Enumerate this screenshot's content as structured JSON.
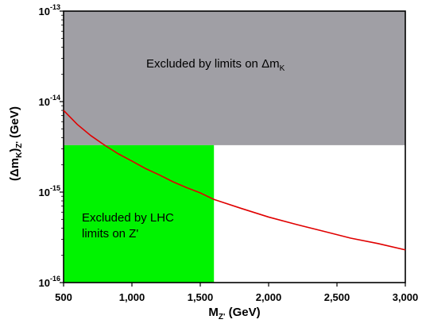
{
  "chart_data": {
    "type": "line",
    "x_scale": "linear",
    "y_scale": "log",
    "xlim": [
      500,
      3000
    ],
    "ylim": [
      1e-16,
      1e-13
    ],
    "xlabel": {
      "main": "M",
      "sub": "Z'",
      "unit": " (GeV)"
    },
    "ylabel": {
      "pre": "(Δm",
      "sub1": "K",
      "mid": ")",
      "sub2": "Z'",
      "unit": " (GeV)"
    },
    "x_ticks": [
      {
        "value": 500,
        "label": "500"
      },
      {
        "value": 1000,
        "label": "1,000"
      },
      {
        "value": 1500,
        "label": "1,500"
      },
      {
        "value": 2000,
        "label": "2,000"
      },
      {
        "value": 2500,
        "label": "2,500"
      },
      {
        "value": 3000,
        "label": "3,000"
      }
    ],
    "y_ticks": [
      {
        "value": 1e-16,
        "base": "10",
        "exp": "-16"
      },
      {
        "value": 1e-15,
        "base": "10",
        "exp": "-15"
      },
      {
        "value": 1e-14,
        "base": "10",
        "exp": "-14"
      },
      {
        "value": 1e-13,
        "base": "10",
        "exp": "-13"
      }
    ],
    "grid": false,
    "regions": [
      {
        "name": "dmk-excluded",
        "color": "#a09fa5",
        "x": [
          500,
          3000
        ],
        "y": [
          3.3e-15,
          1e-13
        ],
        "label": {
          "text": "Excluded by limits on Δm",
          "sub": "K"
        }
      },
      {
        "name": "lhc-excluded",
        "color": "#00f300",
        "x": [
          500,
          1600
        ],
        "y": [
          1e-16,
          3.3e-15
        ],
        "label": {
          "lines": [
            "Excluded by LHC",
            "limits on Z'"
          ]
        }
      }
    ],
    "series": [
      {
        "color": "#e00000",
        "points": [
          [
            500,
            8e-15
          ],
          [
            600,
            5.6e-15
          ],
          [
            700,
            4.2e-15
          ],
          [
            800,
            3.3e-15
          ],
          [
            900,
            2.65e-15
          ],
          [
            1000,
            2.2e-15
          ],
          [
            1100,
            1.82e-15
          ],
          [
            1200,
            1.55e-15
          ],
          [
            1300,
            1.3e-15
          ],
          [
            1400,
            1.12e-15
          ],
          [
            1500,
            9.8e-16
          ],
          [
            1600,
            8.3e-16
          ],
          [
            1800,
            6.6e-16
          ],
          [
            2000,
            5.3e-16
          ],
          [
            2200,
            4.4e-16
          ],
          [
            2400,
            3.7e-16
          ],
          [
            2600,
            3.1e-16
          ],
          [
            2800,
            2.7e-16
          ],
          [
            3000,
            2.3e-16
          ]
        ]
      }
    ]
  }
}
